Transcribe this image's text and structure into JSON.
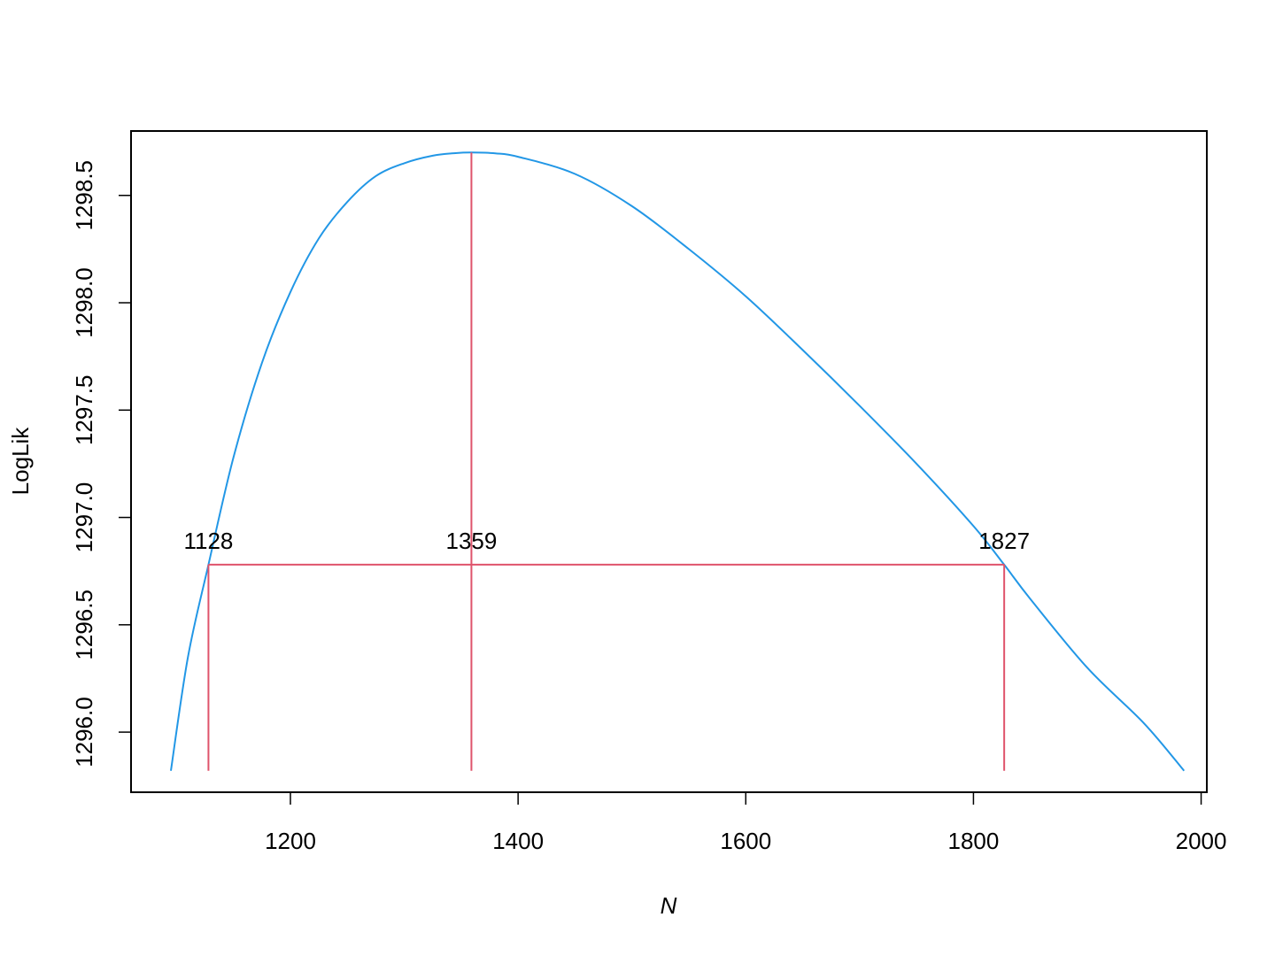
{
  "chart_data": {
    "type": "line",
    "xlabel": "N",
    "ylabel": "LogLik",
    "xlim": [
      1060,
      2005
    ],
    "ylim": [
      1295.72,
      1298.8
    ],
    "x_ticks": [
      1200,
      1400,
      1600,
      1800,
      2000
    ],
    "y_ticks": [
      1296.0,
      1296.5,
      1297.0,
      1297.5,
      1298.0,
      1298.5
    ],
    "x_tick_labels": [
      "1200",
      "1400",
      "1600",
      "1800",
      "2000"
    ],
    "y_tick_labels": [
      "1296.0",
      "1296.5",
      "1297.0",
      "1297.5",
      "1298.0",
      "1298.5"
    ],
    "grid": false,
    "series": [
      {
        "color": "#2297E6",
        "x": [
          1095,
          1110,
          1128,
          1150,
          1175,
          1200,
          1225,
          1250,
          1275,
          1300,
          1325,
          1345,
          1359,
          1380,
          1400,
          1450,
          1500,
          1550,
          1600,
          1650,
          1700,
          1750,
          1800,
          1827,
          1850,
          1900,
          1950,
          1985
        ],
        "y": [
          1295.82,
          1296.35,
          1296.78,
          1297.28,
          1297.72,
          1298.05,
          1298.3,
          1298.47,
          1298.59,
          1298.65,
          1298.685,
          1298.697,
          1298.7,
          1298.696,
          1298.68,
          1298.6,
          1298.45,
          1298.25,
          1298.03,
          1297.78,
          1297.52,
          1297.25,
          1296.96,
          1296.78,
          1296.62,
          1296.3,
          1296.04,
          1295.82
        ]
      }
    ],
    "annotations": {
      "color": "#DF536B",
      "mle": {
        "x": 1359,
        "y": 1298.7,
        "label": "1359"
      },
      "ci_lower": {
        "x": 1128,
        "label": "1128"
      },
      "ci_upper": {
        "x": 1827,
        "label": "1827"
      },
      "cutoff_y": 1296.78
    }
  }
}
